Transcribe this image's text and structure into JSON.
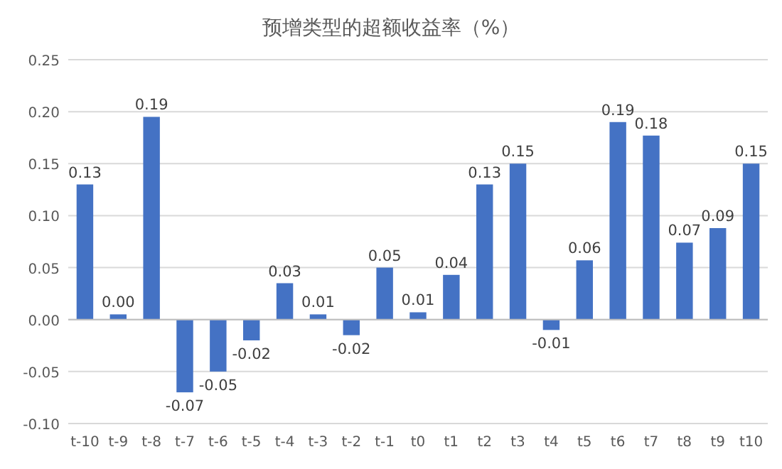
{
  "chart_data": {
    "type": "bar",
    "title": "预增类型的超额收益率（%）",
    "categories": [
      "t-10",
      "t-9",
      "t-8",
      "t-7",
      "t-6",
      "t-5",
      "t-4",
      "t-3",
      "t-2",
      "t-1",
      "t0",
      "t1",
      "t2",
      "t3",
      "t4",
      "t5",
      "t6",
      "t7",
      "t8",
      "t9",
      "t10"
    ],
    "values": [
      0.13,
      0.005,
      0.195,
      -0.07,
      -0.05,
      -0.02,
      0.035,
      0.005,
      -0.015,
      0.05,
      0.007,
      0.043,
      0.13,
      0.15,
      -0.01,
      0.057,
      0.19,
      0.177,
      0.074,
      0.088,
      0.15
    ],
    "value_labels": [
      "0.13",
      "0.00",
      "0.19",
      "-0.07",
      "-0.05",
      "-0.02",
      "0.03",
      "0.01",
      "-0.02",
      "0.05",
      "0.01",
      "0.04",
      "0.13",
      "0.15",
      "-0.01",
      "0.06",
      "0.19",
      "0.18",
      "0.07",
      "0.09",
      "0.15"
    ],
    "color": "#4472c4",
    "ylim": [
      -0.1,
      0.25
    ],
    "yticks": [
      {
        "value": -0.1,
        "label": "-0.10"
      },
      {
        "value": -0.05,
        "label": "-0.05"
      },
      {
        "value": 0,
        "label": "0.00"
      },
      {
        "value": 0.05,
        "label": "0.05"
      },
      {
        "value": 0.1,
        "label": "0.10"
      },
      {
        "value": 0.15,
        "label": "0.15"
      },
      {
        "value": 0.2,
        "label": "0.20"
      },
      {
        "value": 0.25,
        "label": "0.25"
      }
    ],
    "grid": "y"
  }
}
